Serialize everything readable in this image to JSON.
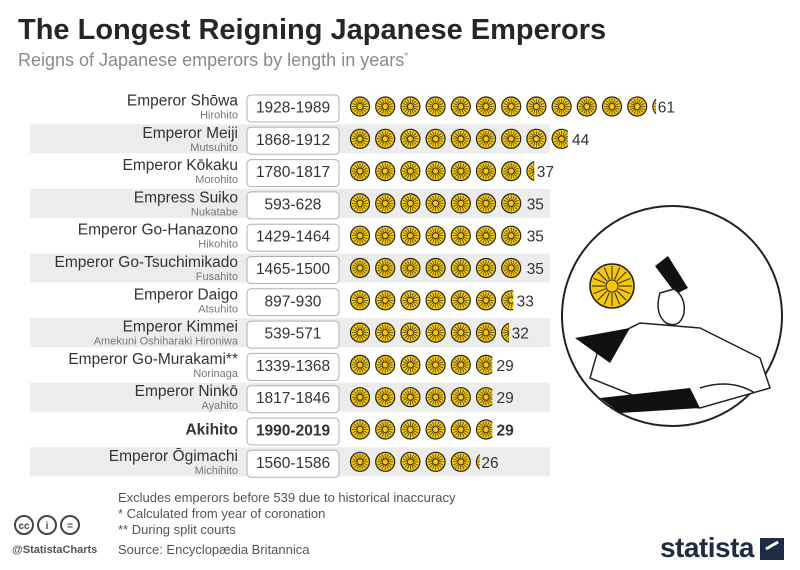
{
  "title": "The Longest Reigning Japanese Emperors",
  "subtitle": "Reigns of Japanese emperors by length in years",
  "subtitle_mark": "*",
  "notes": [
    "Excludes emperors before 539 due to historical inaccuracy",
    "*   Calculated from year of coronation",
    "** During split courts"
  ],
  "source": "Source: Encyclopædia Britannica",
  "handle": "@StatistaCharts",
  "license_icons": [
    "cc",
    "i",
    "="
  ],
  "brand": "statista",
  "colors": {
    "band": "#ececec",
    "coin": "#f5c800",
    "coin_edge": "#222222",
    "label": "#333333"
  },
  "icon_unit_years": 5,
  "chart_data": {
    "type": "bar",
    "categories": [
      {
        "name": "Emperor Shōwa",
        "sub": "Hirohito",
        "period": "1928-1989",
        "value": 61,
        "highlight": false
      },
      {
        "name": "Emperor Meiji",
        "sub": "Mutsuhito",
        "period": "1868-1912",
        "value": 44,
        "highlight": false
      },
      {
        "name": "Emperor Kōkaku",
        "sub": "Morohito",
        "period": "1780-1817",
        "value": 37,
        "highlight": false
      },
      {
        "name": "Empress Suiko",
        "sub": "Nukatabe",
        "period": "593-628",
        "value": 35,
        "highlight": false
      },
      {
        "name": "Emperor Go-Hanazono",
        "sub": "Hikohito",
        "period": "1429-1464",
        "value": 35,
        "highlight": false
      },
      {
        "name": "Emperor Go-Tsuchimikado",
        "sub": "Fusahito",
        "period": "1465-1500",
        "value": 35,
        "highlight": false
      },
      {
        "name": "Emperor Daigo",
        "sub": "Atsuhito",
        "period": "897-930",
        "value": 33,
        "highlight": false
      },
      {
        "name": "Emperor Kimmei",
        "sub": "Amekuni Oshiharaki Hironiwa",
        "period": "539-571",
        "value": 32,
        "highlight": false
      },
      {
        "name": "Emperor Go-Murakami**",
        "sub": "Norinaga",
        "period": "1339-1368",
        "value": 29,
        "highlight": false
      },
      {
        "name": "Emperor Ninkō",
        "sub": "Ayahito",
        "period": "1817-1846",
        "value": 29,
        "highlight": false
      },
      {
        "name": "Akihito",
        "sub": "",
        "period": "1990-2019",
        "value": 29,
        "highlight": true
      },
      {
        "name": "Emperor Ōgimachi",
        "sub": "Michihito",
        "period": "1560-1586",
        "value": 26,
        "highlight": false
      }
    ]
  }
}
